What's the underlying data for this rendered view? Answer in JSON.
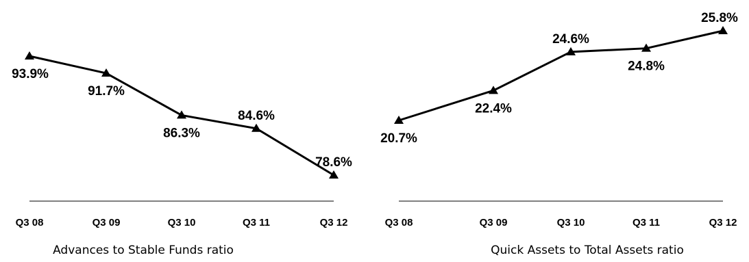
{
  "chart_data": [
    {
      "type": "line",
      "title": "Advances to Stable Funds ratio",
      "categories": [
        "Q3 08",
        "Q3 09",
        "Q3 10",
        "Q3 11",
        "Q3 12"
      ],
      "values": [
        93.9,
        91.7,
        86.3,
        84.6,
        78.6
      ],
      "value_labels": [
        "93.9%",
        "91.7%",
        "86.3%",
        "84.6%",
        "78.6%"
      ],
      "label_position": [
        "below",
        "below",
        "below",
        "above",
        "above"
      ],
      "ylim": [
        77,
        95
      ],
      "unit": "%",
      "marker": "triangle",
      "grid": false,
      "color": "#000000"
    },
    {
      "type": "line",
      "title": "Quick Assets to Total Assets ratio",
      "categories": [
        "Q3 08",
        "Q3 09",
        "Q3 10",
        "Q3 11",
        "Q3 12"
      ],
      "values": [
        20.7,
        22.4,
        24.6,
        24.8,
        25.8
      ],
      "value_labels": [
        "20.7%",
        "22.4%",
        "24.6%",
        "24.8%",
        "25.8%"
      ],
      "label_position": [
        "below",
        "below",
        "above",
        "below",
        "above"
      ],
      "ylim": [
        19.6,
        26.5
      ],
      "unit": "%",
      "marker": "triangle",
      "grid": false,
      "color": "#000000"
    }
  ]
}
